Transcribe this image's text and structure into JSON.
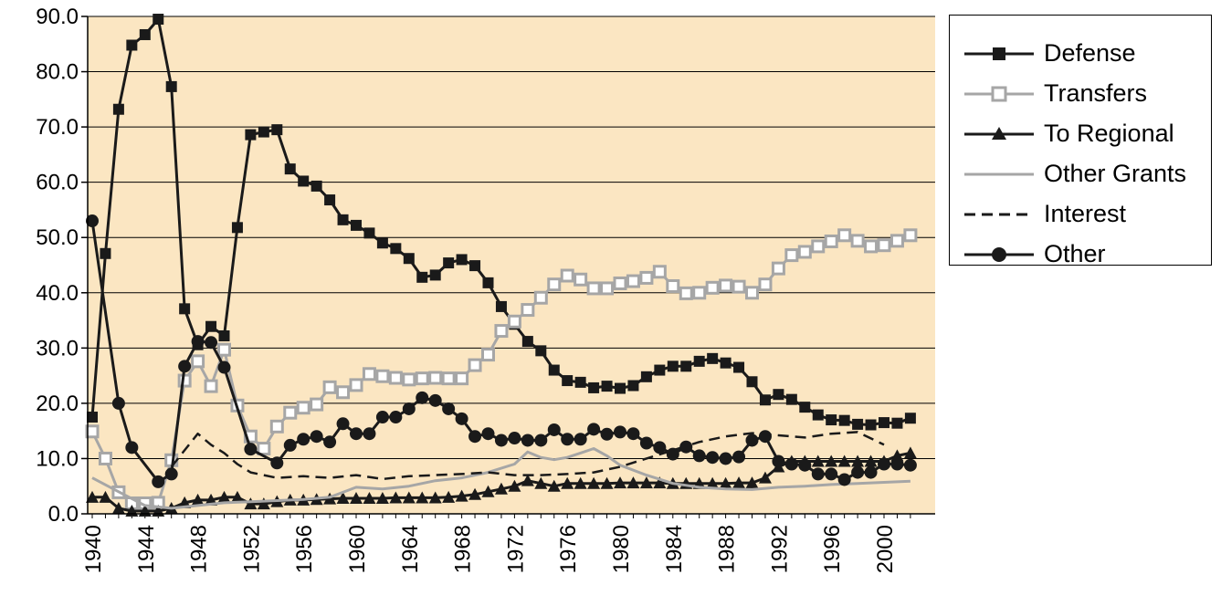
{
  "chart_data": {
    "type": "line",
    "title": "",
    "xlabel": "",
    "ylabel": "",
    "xlim": [
      1940,
      2003
    ],
    "ylim": [
      0,
      90
    ],
    "grid": "horizontal",
    "legend_position": "right",
    "y_ticks": [
      "0.0",
      "10.0",
      "20.0",
      "30.0",
      "40.0",
      "50.0",
      "60.0",
      "70.0",
      "80.0",
      "90.0"
    ],
    "x_ticks": [
      "1940",
      "1944",
      "1948",
      "1952",
      "1956",
      "1960",
      "1964",
      "1968",
      "1972",
      "1976",
      "1980",
      "1984",
      "1988",
      "1992",
      "1996",
      "2000"
    ],
    "x_tick_values": [
      1940,
      1944,
      1948,
      1952,
      1956,
      1960,
      1964,
      1968,
      1972,
      1976,
      1980,
      1984,
      1988,
      1992,
      1996,
      2000
    ],
    "colors": {
      "plot_background": "#fbe6c2",
      "black": "#1a1a1a",
      "gray": "#a6a6a6"
    },
    "series": [
      {
        "name": "Defense",
        "color": "#1a1a1a",
        "marker": "square-filled",
        "dash": "solid",
        "width": 3,
        "x": [
          1940,
          1941,
          1942,
          1943,
          1944,
          1945,
          1946,
          1947,
          1948,
          1949,
          1950,
          1951,
          1952,
          1953,
          1954,
          1955,
          1956,
          1957,
          1958,
          1959,
          1960,
          1961,
          1962,
          1963,
          1964,
          1965,
          1966,
          1967,
          1968,
          1969,
          1970,
          1971,
          1972,
          1973,
          1974,
          1975,
          1976,
          1977,
          1978,
          1979,
          1980,
          1981,
          1982,
          1983,
          1984,
          1985,
          1986,
          1987,
          1988,
          1989,
          1990,
          1991,
          1992,
          1993,
          1994,
          1995,
          1996,
          1997,
          1998,
          1999,
          2000,
          2001,
          2002
        ],
        "y": [
          17.5,
          47.1,
          73.2,
          84.8,
          86.7,
          89.5,
          77.3,
          37.1,
          30.6,
          33.9,
          32.2,
          51.8,
          68.6,
          69.1,
          69.5,
          62.4,
          60.2,
          59.3,
          56.8,
          53.2,
          52.2,
          50.8,
          49.0,
          48.0,
          46.2,
          42.8,
          43.2,
          45.4,
          46.0,
          44.9,
          41.8,
          37.5,
          34.3,
          31.2,
          29.5,
          26.0,
          24.1,
          23.8,
          22.8,
          23.1,
          22.7,
          23.2,
          24.8,
          26.0,
          26.7,
          26.7,
          27.6,
          28.1,
          27.3,
          26.5,
          23.9,
          20.6,
          21.6,
          20.7,
          19.3,
          17.9,
          17.0,
          16.9,
          16.2,
          16.1,
          16.5,
          16.4,
          17.3
        ]
      },
      {
        "name": "Transfers",
        "color": "#a6a6a6",
        "marker": "square-open",
        "dash": "solid",
        "width": 3,
        "x": [
          1940,
          1941,
          1942,
          1943,
          1944,
          1945,
          1946,
          1947,
          1948,
          1949,
          1950,
          1951,
          1952,
          1953,
          1954,
          1955,
          1956,
          1957,
          1958,
          1959,
          1960,
          1961,
          1962,
          1963,
          1964,
          1965,
          1966,
          1967,
          1968,
          1969,
          1970,
          1971,
          1972,
          1973,
          1974,
          1975,
          1976,
          1977,
          1978,
          1979,
          1980,
          1981,
          1982,
          1983,
          1984,
          1985,
          1986,
          1987,
          1988,
          1989,
          1990,
          1991,
          1992,
          1993,
          1994,
          1995,
          1996,
          1997,
          1998,
          1999,
          2000,
          2001,
          2002
        ],
        "y": [
          14.9,
          10.0,
          3.9,
          1.9,
          1.9,
          2.0,
          9.7,
          24.1,
          27.6,
          23.1,
          29.7,
          19.6,
          14.0,
          11.8,
          15.8,
          18.3,
          19.2,
          19.8,
          22.9,
          22.0,
          23.3,
          25.3,
          24.9,
          24.6,
          24.3,
          24.5,
          24.6,
          24.5,
          24.5,
          26.9,
          28.8,
          33.1,
          34.8,
          36.9,
          39.1,
          41.5,
          43.1,
          42.4,
          40.8,
          40.8,
          41.7,
          42.1,
          42.7,
          43.8,
          41.2,
          39.9,
          40.0,
          40.9,
          41.3,
          41.1,
          40.0,
          41.5,
          44.4,
          46.8,
          47.4,
          48.4,
          49.3,
          50.4,
          49.4,
          48.4,
          48.6,
          49.4,
          50.4
        ]
      },
      {
        "name": "To Regional",
        "color": "#1a1a1a",
        "marker": "triangle-filled",
        "dash": "solid",
        "width": 3,
        "x": [
          1940,
          1941,
          1942,
          1943,
          1944,
          1945,
          1946,
          1947,
          1948,
          1949,
          1950,
          1951,
          1952,
          1953,
          1954,
          1955,
          1956,
          1957,
          1958,
          1959,
          1960,
          1961,
          1962,
          1963,
          1964,
          1965,
          1966,
          1967,
          1968,
          1969,
          1970,
          1971,
          1972,
          1973,
          1974,
          1975,
          1976,
          1977,
          1978,
          1979,
          1980,
          1981,
          1982,
          1983,
          1984,
          1985,
          1986,
          1987,
          1988,
          1989,
          1990,
          1991,
          1992,
          1993,
          1994,
          1995,
          1996,
          1997,
          1998,
          1999,
          2000,
          2001,
          2002
        ],
        "y": [
          3.0,
          3.0,
          1.0,
          0.5,
          0.5,
          0.5,
          1.0,
          2.0,
          2.5,
          2.5,
          3.0,
          3.0,
          1.8,
          1.8,
          2.2,
          2.5,
          2.5,
          2.6,
          2.7,
          2.8,
          2.8,
          2.8,
          2.8,
          2.9,
          2.9,
          2.9,
          2.9,
          3.0,
          3.2,
          3.5,
          4.0,
          4.5,
          5.0,
          6.0,
          5.5,
          5.0,
          5.5,
          5.5,
          5.5,
          5.5,
          5.6,
          5.6,
          5.6,
          5.6,
          5.5,
          5.5,
          5.5,
          5.5,
          5.5,
          5.6,
          5.6,
          6.5,
          8.5,
          9.5,
          9.5,
          9.5,
          9.5,
          9.5,
          9.5,
          9.5,
          9.5,
          10.5,
          11.0
        ]
      },
      {
        "name": "Other Grants",
        "color": "#a6a6a6",
        "marker": "none",
        "dash": "solid",
        "width": 3,
        "x": [
          1940,
          1942,
          1944,
          1946,
          1948,
          1950,
          1952,
          1954,
          1956,
          1958,
          1960,
          1962,
          1964,
          1966,
          1968,
          1970,
          1972,
          1973,
          1974,
          1975,
          1976,
          1977,
          1978,
          1979,
          1980,
          1982,
          1984,
          1986,
          1988,
          1990,
          1992,
          1994,
          1996,
          1998,
          2000,
          2002
        ],
        "y": [
          6.5,
          4.0,
          1.5,
          1.0,
          1.5,
          2.0,
          2.2,
          2.4,
          2.6,
          3.0,
          4.8,
          4.5,
          5.0,
          6.0,
          6.5,
          7.5,
          9.0,
          11.2,
          10.2,
          9.8,
          10.2,
          11.0,
          11.8,
          10.5,
          8.8,
          7.0,
          5.5,
          4.8,
          4.5,
          4.4,
          4.8,
          5.0,
          5.3,
          5.5,
          5.7,
          5.9
        ]
      },
      {
        "name": "Interest",
        "color": "#1a1a1a",
        "marker": "none",
        "dash": "dashed",
        "width": 2.5,
        "x": [
          1946,
          1947,
          1948,
          1949,
          1950,
          1951,
          1952,
          1954,
          1956,
          1958,
          1960,
          1962,
          1964,
          1966,
          1968,
          1970,
          1972,
          1974,
          1976,
          1978,
          1980,
          1982,
          1984,
          1986,
          1988,
          1990,
          1992,
          1994,
          1996,
          1998,
          2000
        ],
        "y": [
          8.5,
          11.5,
          14.5,
          12.5,
          11.0,
          9.0,
          7.5,
          6.5,
          6.8,
          6.5,
          7.0,
          6.3,
          6.8,
          7.0,
          7.2,
          7.5,
          7.0,
          7.0,
          7.2,
          7.5,
          8.5,
          10.0,
          11.5,
          13.0,
          14.0,
          14.6,
          14.2,
          13.8,
          14.5,
          14.8,
          12.5
        ]
      },
      {
        "name": "Other",
        "color": "#1a1a1a",
        "marker": "circle-filled",
        "dash": "solid",
        "width": 3,
        "x": [
          1940,
          1942,
          1943,
          1945,
          1946,
          1947,
          1948,
          1949,
          1950,
          1952,
          1954,
          1955,
          1956,
          1957,
          1958,
          1959,
          1960,
          1961,
          1962,
          1963,
          1964,
          1965,
          1966,
          1967,
          1968,
          1969,
          1970,
          1971,
          1972,
          1973,
          1974,
          1975,
          1976,
          1977,
          1978,
          1979,
          1980,
          1981,
          1982,
          1983,
          1984,
          1985,
          1986,
          1987,
          1988,
          1989,
          1990,
          1991,
          1992,
          1993,
          1994,
          1995,
          1996,
          1997,
          1998,
          1999,
          2000,
          2001,
          2002
        ],
        "y": [
          53.0,
          20.0,
          12.0,
          5.8,
          7.2,
          26.7,
          31.2,
          31.0,
          26.5,
          11.7,
          9.2,
          12.4,
          13.5,
          14.0,
          13.0,
          16.3,
          14.5,
          14.5,
          17.5,
          17.5,
          19.0,
          21.0,
          20.5,
          19.0,
          17.2,
          14.0,
          14.5,
          13.3,
          13.7,
          13.3,
          13.3,
          15.2,
          13.5,
          13.5,
          15.3,
          14.4,
          14.8,
          14.5,
          12.8,
          12.0,
          10.8,
          12.1,
          10.5,
          10.2,
          10.0,
          10.3,
          13.3,
          14.0,
          9.5,
          9.0,
          8.8,
          7.2,
          7.2,
          6.2,
          7.5,
          7.5,
          9.0,
          9.0,
          8.8
        ]
      }
    ]
  }
}
